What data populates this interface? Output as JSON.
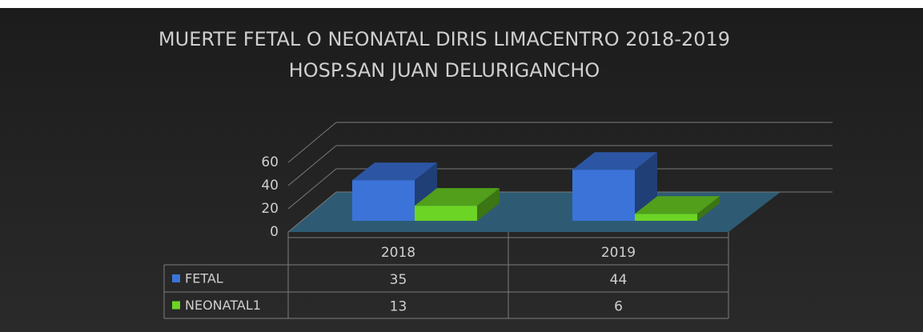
{
  "chart_data": {
    "type": "bar3d",
    "title": "MUERTE FETAL O NEONATAL DIRIS LIMACENTRO 2018-2019",
    "subtitle": "HOSP.SAN JUAN DELURIGANCHO",
    "categories": [
      "2018",
      "2019"
    ],
    "series": [
      {
        "name": "FETAL",
        "color": "#3b73d9",
        "values": [
          35,
          44
        ]
      },
      {
        "name": "NEONATAL1",
        "color": "#6cd424",
        "values": [
          13,
          6
        ]
      }
    ],
    "ylim": [
      0,
      60
    ],
    "yticks": [
      0,
      20,
      40,
      60
    ],
    "grid": true
  }
}
